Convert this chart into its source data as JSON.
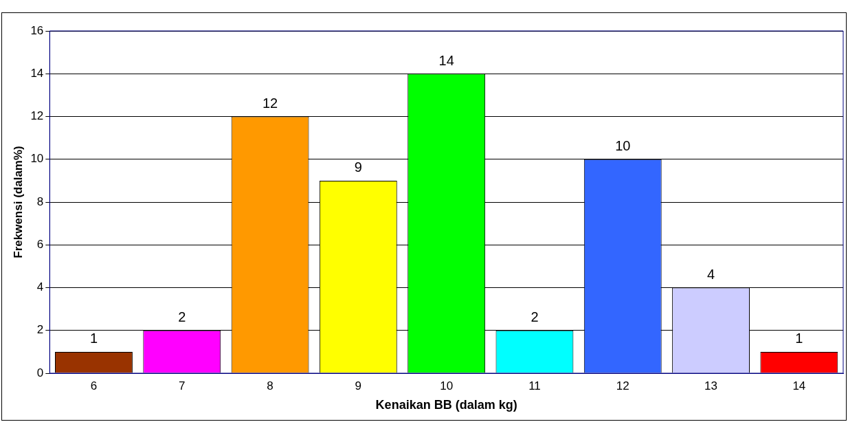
{
  "chart_data": {
    "type": "bar",
    "xlabel": "Kenaikan BB (dalam kg)",
    "ylabel": "Frekwensi (dalam%)",
    "categories": [
      "6",
      "7",
      "8",
      "9",
      "10",
      "11",
      "12",
      "13",
      "14"
    ],
    "values": [
      1,
      2,
      12,
      9,
      14,
      2,
      10,
      4,
      1
    ],
    "colors": [
      "#993300",
      "#ff00ff",
      "#ff9900",
      "#ffff00",
      "#00ff00",
      "#00ffff",
      "#3366ff",
      "#ccccff",
      "#ff0000"
    ],
    "ylim": [
      0,
      16
    ],
    "yticks": [
      0,
      2,
      4,
      6,
      8,
      10,
      12,
      14,
      16
    ],
    "grid": "y",
    "data_labels": true
  }
}
